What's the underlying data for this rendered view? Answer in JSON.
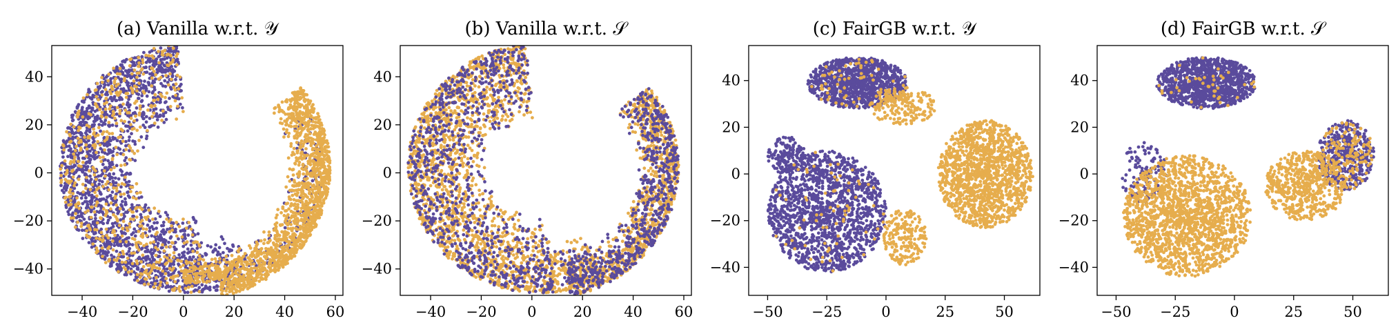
{
  "colors": {
    "class_a": "#5a4b9c",
    "class_b": "#e6ad4d"
  },
  "chart_data": [
    {
      "type": "scatter",
      "title": "(a) Vanilla w.r.t. 𝒴",
      "xlim": [
        -52,
        63
      ],
      "ylim": [
        -51,
        53
      ],
      "xticks": [
        -40,
        -20,
        0,
        20,
        40,
        60
      ],
      "yticks": [
        -40,
        -20,
        0,
        20,
        40
      ],
      "xtick_labels": [
        "−40",
        "−20",
        "0",
        "20",
        "40",
        "60"
      ],
      "ytick_labels": [
        "−40",
        "−20",
        "0",
        "20",
        "40"
      ],
      "grid": false,
      "series": [
        {
          "color": "#5a4b9c",
          "clusters": [
            {
              "kind": "arc",
              "cx": 3,
              "cy": 2,
              "rmin": 20,
              "rmax": 52,
              "a0": 96,
              "a1": 276,
              "n": 1900
            },
            {
              "kind": "arc",
              "cx": 3,
              "cy": 2,
              "rmin": 30,
              "rmax": 52,
              "a0": 276,
              "a1": 300,
              "n": 150
            },
            {
              "kind": "arc",
              "cx": 3,
              "cy": 2,
              "rmin": 38,
              "rmax": 52,
              "a0": 300,
              "a1": 385,
              "n": 160
            }
          ]
        },
        {
          "color": "#e6ad4d",
          "clusters": [
            {
              "kind": "arc",
              "cx": 3,
              "cy": 2,
              "rmin": 38,
              "rmax": 55,
              "a0": 283,
              "a1": 398,
              "n": 1500
            },
            {
              "kind": "arc",
              "cx": 3,
              "cy": 2,
              "rmin": 20,
              "rmax": 52,
              "a0": 96,
              "a1": 276,
              "n": 650
            },
            {
              "kind": "arc",
              "cx": 3,
              "cy": 2,
              "rmin": 38,
              "rmax": 48,
              "a0": 266,
              "a1": 285,
              "n": 120
            }
          ]
        }
      ]
    },
    {
      "type": "scatter",
      "title": "(b) Vanilla w.r.t. 𝒮",
      "xlim": [
        -52,
        63
      ],
      "ylim": [
        -51,
        53
      ],
      "xticks": [
        -40,
        -20,
        0,
        20,
        40,
        60
      ],
      "yticks": [
        -40,
        -20,
        0,
        20,
        40
      ],
      "xtick_labels": [
        "−40",
        "−20",
        "0",
        "20",
        "40",
        "60"
      ],
      "ytick_labels": [
        "−40",
        "−20",
        "0",
        "20",
        "40"
      ],
      "grid": false,
      "series": [
        {
          "color": "#e6ad4d",
          "clusters": [
            {
              "kind": "arc",
              "cx": 3,
              "cy": 2,
              "rmin": 20,
              "rmax": 52,
              "a0": 96,
              "a1": 276,
              "n": 1700
            },
            {
              "kind": "arc",
              "cx": 3,
              "cy": 2,
              "rmin": 30,
              "rmax": 52,
              "a0": 276,
              "a1": 300,
              "n": 180
            },
            {
              "kind": "arc",
              "cx": 3,
              "cy": 2,
              "rmin": 38,
              "rmax": 55,
              "a0": 283,
              "a1": 398,
              "n": 900
            }
          ]
        },
        {
          "color": "#5a4b9c",
          "clusters": [
            {
              "kind": "arc",
              "cx": 3,
              "cy": 2,
              "rmin": 20,
              "rmax": 52,
              "a0": 96,
              "a1": 276,
              "n": 900
            },
            {
              "kind": "arc",
              "cx": 3,
              "cy": 2,
              "rmin": 38,
              "rmax": 55,
              "a0": 283,
              "a1": 398,
              "n": 650
            },
            {
              "kind": "arc",
              "cx": 3,
              "cy": 2,
              "rmin": 30,
              "rmax": 50,
              "a0": 270,
              "a1": 300,
              "n": 80
            }
          ]
        }
      ]
    },
    {
      "type": "scatter",
      "title": "(c) FairGB w.r.t. 𝒴",
      "xlim": [
        -58,
        65
      ],
      "ylim": [
        -52,
        55
      ],
      "xticks": [
        -50,
        -25,
        0,
        25,
        50
      ],
      "yticks": [
        -40,
        -20,
        0,
        20,
        40
      ],
      "xtick_labels": [
        "−50",
        "−25",
        "0",
        "25",
        "50"
      ],
      "ytick_labels": [
        "−40",
        "−20",
        "0",
        "20",
        "40"
      ],
      "grid": false,
      "series": [
        {
          "color": "#5a4b9c",
          "clusters": [
            {
              "kind": "blob",
              "cx": -12,
              "cy": 39,
              "rx": 21,
              "ry": 11,
              "n": 1100
            },
            {
              "kind": "blob",
              "cx": -25,
              "cy": -16,
              "rx": 25,
              "ry": 26,
              "n": 1500
            },
            {
              "kind": "blob",
              "cx": -42,
              "cy": 8,
              "rx": 8,
              "ry": 8,
              "n": 140
            }
          ]
        },
        {
          "color": "#e6ad4d",
          "clusters": [
            {
              "kind": "blob",
              "cx": 42,
              "cy": 0,
              "rx": 20,
              "ry": 23,
              "n": 1400
            },
            {
              "kind": "blob",
              "cx": 8,
              "cy": -27,
              "rx": 9,
              "ry": 12,
              "n": 200
            },
            {
              "kind": "blob",
              "cx": 7,
              "cy": 29,
              "rx": 14,
              "ry": 8,
              "n": 200
            },
            {
              "kind": "blob",
              "cx": -25,
              "cy": -16,
              "rx": 25,
              "ry": 26,
              "n": 70
            },
            {
              "kind": "blob",
              "cx": -12,
              "cy": 39,
              "rx": 21,
              "ry": 11,
              "n": 60
            }
          ]
        }
      ]
    },
    {
      "type": "scatter",
      "title": "(d) FairGB w.r.t. 𝒮",
      "xlim": [
        -58,
        65
      ],
      "ylim": [
        -52,
        55
      ],
      "xticks": [
        -50,
        -25,
        0,
        25,
        50
      ],
      "yticks": [
        -40,
        -20,
        0,
        20,
        40
      ],
      "xtick_labels": [
        "−50",
        "−25",
        "0",
        "25",
        "50"
      ],
      "ytick_labels": [
        "−40",
        "−20",
        "0",
        "20",
        "40"
      ],
      "grid": false,
      "series": [
        {
          "color": "#5a4b9c",
          "clusters": [
            {
              "kind": "blob",
              "cx": -12,
              "cy": 39,
              "rx": 21,
              "ry": 11,
              "n": 1100
            },
            {
              "kind": "blob",
              "cx": 47,
              "cy": 8,
              "rx": 12,
              "ry": 15,
              "n": 450
            },
            {
              "kind": "blob",
              "cx": -38,
              "cy": 0,
              "rx": 10,
              "ry": 14,
              "n": 120
            }
          ]
        },
        {
          "color": "#e6ad4d",
          "clusters": [
            {
              "kind": "blob",
              "cx": -20,
              "cy": -18,
              "rx": 27,
              "ry": 26,
              "n": 1700
            },
            {
              "kind": "blob",
              "cx": 30,
              "cy": -5,
              "rx": 17,
              "ry": 15,
              "n": 550
            },
            {
              "kind": "blob",
              "cx": 47,
              "cy": 8,
              "rx": 12,
              "ry": 15,
              "n": 150
            },
            {
              "kind": "blob",
              "cx": -12,
              "cy": 39,
              "rx": 21,
              "ry": 11,
              "n": 40
            }
          ]
        }
      ]
    }
  ]
}
